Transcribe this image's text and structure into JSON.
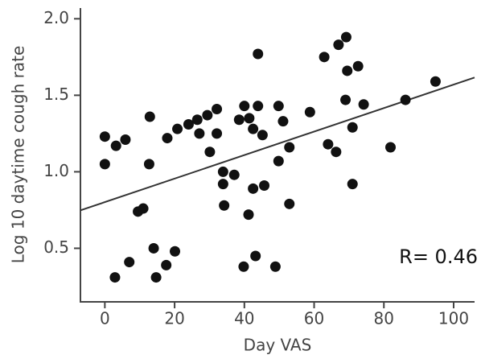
{
  "chart_data": {
    "type": "scatter",
    "x_label": "Day VAS",
    "y_label": "Log 10 daytime cough rate",
    "annotation": "R= 0.46",
    "color": "#111111",
    "line_color": "#333333",
    "xlim": [
      -7,
      106
    ],
    "xticks": [
      0,
      20,
      40,
      60,
      80,
      100
    ],
    "ylim": [
      0.15,
      2.07
    ],
    "yticks": [
      0.5,
      {
        "value": 1,
        "label": "1.0"
      },
      1.5,
      {
        "value": 2,
        "label": "2.0"
      }
    ],
    "x": [
      0,
      0,
      3.2,
      5.9,
      2.9,
      7,
      9.5,
      11,
      12.9,
      12.7,
      14,
      14.7,
      17.9,
      17.6,
      20.1,
      20.8,
      24,
      26.5,
      27.1,
      29.4,
      30.1,
      32.1,
      32.1,
      33.9,
      33.9,
      34.2,
      37.1,
      38.5,
      40,
      39.8,
      41.4,
      41.2,
      42.5,
      42.5,
      43.2,
      43.9,
      43.9,
      45.2,
      45.7,
      48.9,
      49.8,
      49.8,
      51.1,
      52.9,
      52.9,
      58.8,
      62.9,
      64,
      66.3,
      67,
      69.2,
      69.5,
      69,
      71,
      71,
      72.6,
      74.2,
      81.9,
      86.2,
      94.8
    ],
    "y": [
      1.23,
      1.05,
      1.17,
      1.21,
      0.31,
      0.41,
      0.74,
      0.76,
      1.36,
      1.05,
      0.5,
      0.31,
      1.22,
      0.39,
      0.48,
      1.28,
      1.31,
      1.34,
      1.25,
      1.37,
      1.13,
      1.41,
      1.25,
      1.0,
      0.92,
      0.78,
      0.98,
      1.34,
      1.43,
      0.38,
      1.35,
      0.72,
      1.28,
      0.89,
      0.45,
      1.77,
      1.43,
      1.24,
      0.91,
      0.38,
      1.43,
      1.07,
      1.33,
      1.16,
      0.79,
      1.39,
      1.75,
      1.18,
      1.13,
      1.83,
      1.88,
      1.66,
      1.47,
      1.29,
      0.92,
      1.69,
      1.44,
      1.16,
      1.47,
      1.59
    ],
    "trendline": {
      "x": [
        -7,
        106
      ],
      "y": [
        0.748,
        1.616
      ]
    }
  }
}
